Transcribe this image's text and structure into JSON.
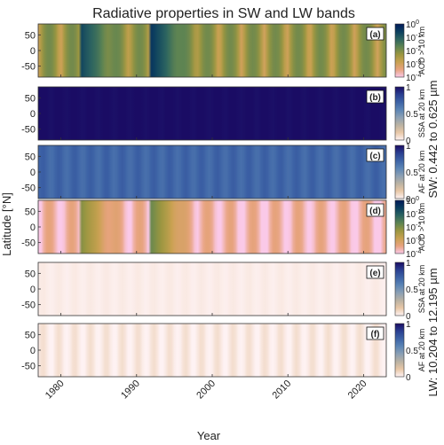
{
  "figure": {
    "title": "Radiative properties in SW and LW bands",
    "xlabel": "Year",
    "ylabel": "Latitude [°N]",
    "band_labels": [
      "SW: 0.442 to 0.625 µm",
      "LW: 10.204 to 12.195 µm"
    ]
  },
  "chart_data": [
    {
      "type": "heatmap",
      "panel": "(a)",
      "band": "SW",
      "quantity": "aod",
      "colorbar_label": "AOD > 10 km",
      "colormap": "batlow",
      "log_scale": true,
      "clim": [
        0.0001,
        1
      ],
      "xlim": [
        1977,
        2023
      ],
      "ylim": [
        -85,
        85
      ],
      "xticks": [
        1980,
        1990,
        2000,
        2010,
        2020
      ],
      "yticks": [
        50,
        0,
        -50
      ],
      "cbar_ticks": [
        "10^0",
        "10^-1",
        "10^-2",
        "10^-3",
        "10^-4"
      ],
      "eruptions": [
        {
          "year": 1982.5,
          "aod": 0.25
        },
        {
          "year": 1991.6,
          "aod": 0.5
        }
      ],
      "background_aod": 0.006
    },
    {
      "type": "heatmap",
      "panel": "(b)",
      "band": "SW",
      "quantity": "ssa",
      "colorbar_label": "SSA at 20 km",
      "colormap": "lapaz",
      "log_scale": false,
      "clim": [
        0,
        1
      ],
      "xlim": [
        1977,
        2023
      ],
      "ylim": [
        -85,
        85
      ],
      "xticks": [
        1980,
        1990,
        2000,
        2010,
        2020
      ],
      "yticks": [
        50,
        0,
        -50
      ],
      "cbar_ticks": [
        "1",
        "0.5",
        "0"
      ],
      "typical_value": 0.999
    },
    {
      "type": "heatmap",
      "panel": "(c)",
      "band": "SW",
      "quantity": "af",
      "colorbar_label": "AF at 20 km",
      "colormap": "lapaz",
      "log_scale": false,
      "clim": [
        0,
        1
      ],
      "xlim": [
        1977,
        2023
      ],
      "ylim": [
        -85,
        85
      ],
      "xticks": [
        1980,
        1990,
        2000,
        2010,
        2020
      ],
      "yticks": [
        50,
        0,
        -50
      ],
      "cbar_ticks": [
        "1",
        "0.5",
        "0"
      ],
      "typical_value": 0.7
    },
    {
      "type": "heatmap",
      "panel": "(d)",
      "band": "LW",
      "quantity": "aod",
      "colorbar_label": "AOD > 10 km",
      "colormap": "batlow",
      "log_scale": true,
      "clim": [
        0.0001,
        1
      ],
      "xlim": [
        1977,
        2023
      ],
      "ylim": [
        -85,
        85
      ],
      "xticks": [
        1980,
        1990,
        2000,
        2010,
        2020
      ],
      "yticks": [
        50,
        0,
        -50
      ],
      "cbar_ticks": [
        "10^0",
        "10^-1",
        "10^-2",
        "10^-3",
        "10^-4"
      ],
      "eruptions": [
        {
          "year": 1982.5,
          "aod": 0.01
        },
        {
          "year": 1991.6,
          "aod": 0.02
        }
      ],
      "background_aod": 0.0002
    },
    {
      "type": "heatmap",
      "panel": "(e)",
      "band": "LW",
      "quantity": "ssa",
      "colorbar_label": "SSA at 20 km",
      "colormap": "lapaz",
      "log_scale": false,
      "clim": [
        0,
        1
      ],
      "xlim": [
        1977,
        2023
      ],
      "ylim": [
        -85,
        85
      ],
      "xticks": [
        1980,
        1990,
        2000,
        2010,
        2020
      ],
      "yticks": [
        50,
        0,
        -50
      ],
      "cbar_ticks": [
        "1",
        "0.5",
        "0"
      ],
      "typical_value": 0.02
    },
    {
      "type": "heatmap",
      "panel": "(f)",
      "band": "LW",
      "quantity": "af",
      "colorbar_label": "AF at 20 km",
      "colormap": "lapaz",
      "log_scale": false,
      "clim": [
        0,
        1
      ],
      "xlim": [
        1977,
        2023
      ],
      "ylim": [
        -85,
        85
      ],
      "xticks": [
        1980,
        1990,
        2000,
        2010,
        2020
      ],
      "yticks": [
        50,
        0,
        -50
      ],
      "cbar_ticks": [
        "1",
        "0.5",
        "0"
      ],
      "typical_value": 0.03
    }
  ]
}
